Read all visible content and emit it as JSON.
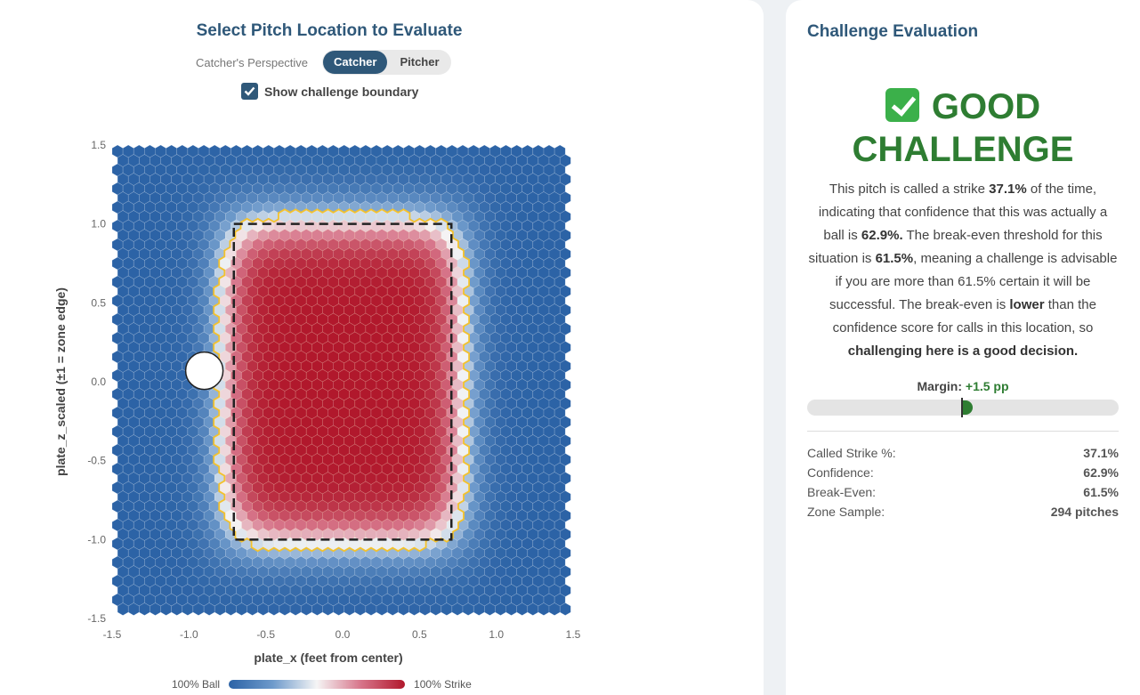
{
  "selector": {
    "title": "Select Pitch Location to Evaluate",
    "perspective_label": "Catcher's Perspective",
    "options": [
      "Catcher",
      "Pitcher"
    ],
    "active": "Catcher",
    "checkbox_label": "Show challenge boundary",
    "checkbox_checked": true
  },
  "chart_data": {
    "type": "heatmap",
    "xlabel": "plate_x (feet from center)",
    "ylabel": "plate_z_scaled (±1 = zone edge)",
    "xlim": [
      -1.5,
      1.5
    ],
    "ylim": [
      -1.5,
      1.5
    ],
    "x_ticks": [
      "-1.5",
      "-1.0",
      "-0.5",
      "0.0",
      "0.5",
      "1.0",
      "1.5"
    ],
    "y_ticks": [
      "1.5",
      "1.0",
      "0.5",
      "0.0",
      "-0.5",
      "-1.0",
      "-1.5"
    ],
    "strike_zone": {
      "x": [
        -0.708,
        0.708
      ],
      "z": [
        -1.0,
        1.0
      ]
    },
    "selected_pitch": {
      "x": -0.9,
      "z": 0.07
    },
    "colorscale": [
      "#2c63a6",
      "#6e9acb",
      "#f5f5f5",
      "#d7758a",
      "#b1182c"
    ],
    "boundary_color": "#f2c12e",
    "legend_low": "100% Ball",
    "legend_high": "100% Strike"
  },
  "evaluation": {
    "title": "Challenge Evaluation",
    "verdict": "GOOD CHALLENGE",
    "desc_1": "This pitch is called a strike ",
    "called_pct": "37.1%",
    "desc_2": " of the time, indicating that confidence that this was actually a ball is ",
    "confidence_pct": "62.9%.",
    "desc_3": " The break-even threshold for this situation is ",
    "breakeven_pct": "61.5%",
    "desc_4": ", meaning a challenge is advisable if you are more than 61.5% certain it will be successful. The break-even is ",
    "lower_word": "lower",
    "desc_5": " than the confidence score for calls in this location, so ",
    "conclusion": "challenging here is a good decision.",
    "margin_label": "Margin:",
    "margin_value": "+1.5 pp",
    "margin_pp": 1.5
  },
  "stats": [
    {
      "label": "Called Strike %:",
      "value": "37.1%"
    },
    {
      "label": "Confidence:",
      "value": "62.9%"
    },
    {
      "label": "Break-Even:",
      "value": "61.5%"
    },
    {
      "label": "Zone Sample:",
      "value": "294 pitches"
    }
  ]
}
